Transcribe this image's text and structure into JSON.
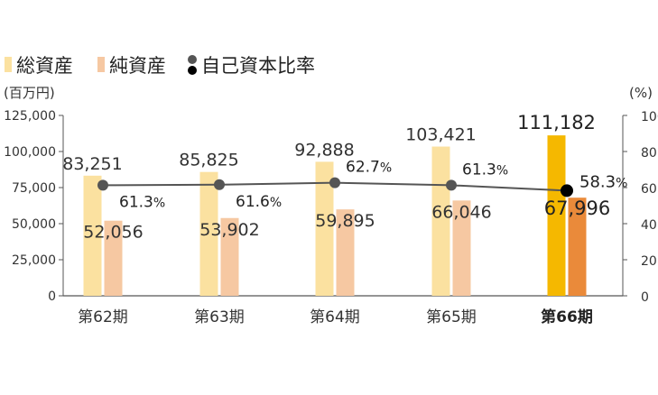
{
  "legend": {
    "total_assets": "総資産",
    "net_assets": "純資産",
    "equity_ratio": "自己資本比率"
  },
  "axis": {
    "left_unit": "(百万円)",
    "right_unit": "(%)",
    "left_ticks": [
      "0",
      "25,000",
      "50,000",
      "75,000",
      "100,000",
      "125,000"
    ],
    "right_ticks": [
      "0",
      "20",
      "40",
      "60",
      "80",
      "100"
    ]
  },
  "colors": {
    "total_assets": "#FBE1A0",
    "net_assets": "#F6C8A2",
    "total_assets_highlight": "#F5B800",
    "net_assets_highlight": "#EA8A3A",
    "ratio_line": "#555555",
    "ratio_marker": "#555555",
    "ratio_marker_highlight": "#000000",
    "axis": "#555555"
  },
  "chart_data": {
    "type": "bar",
    "categories": [
      "第62期",
      "第63期",
      "第64期",
      "第65期",
      "第66期"
    ],
    "highlight_index": 4,
    "series": [
      {
        "name": "総資産",
        "values": [
          83251,
          85825,
          92888,
          103421,
          111182
        ],
        "labels": [
          "83,251",
          "85,825",
          "92,888",
          "103,421",
          "111,182"
        ],
        "axis": "left"
      },
      {
        "name": "純資産",
        "values": [
          52056,
          53902,
          59895,
          66046,
          67996
        ],
        "labels": [
          "52,056",
          "53,902",
          "59,895",
          "66,046",
          "67,996"
        ],
        "axis": "left"
      },
      {
        "name": "自己資本比率",
        "type": "line",
        "values": [
          61.3,
          61.6,
          62.7,
          61.3,
          58.3
        ],
        "labels": [
          "61.3",
          "61.6",
          "62.7",
          "61.3",
          "58.3"
        ],
        "unit_suffix": "%",
        "axis": "right"
      }
    ],
    "ylim_left": [
      0,
      125000
    ],
    "ylim_right": [
      0,
      100
    ],
    "grid": false,
    "legend_position": "top-left"
  }
}
